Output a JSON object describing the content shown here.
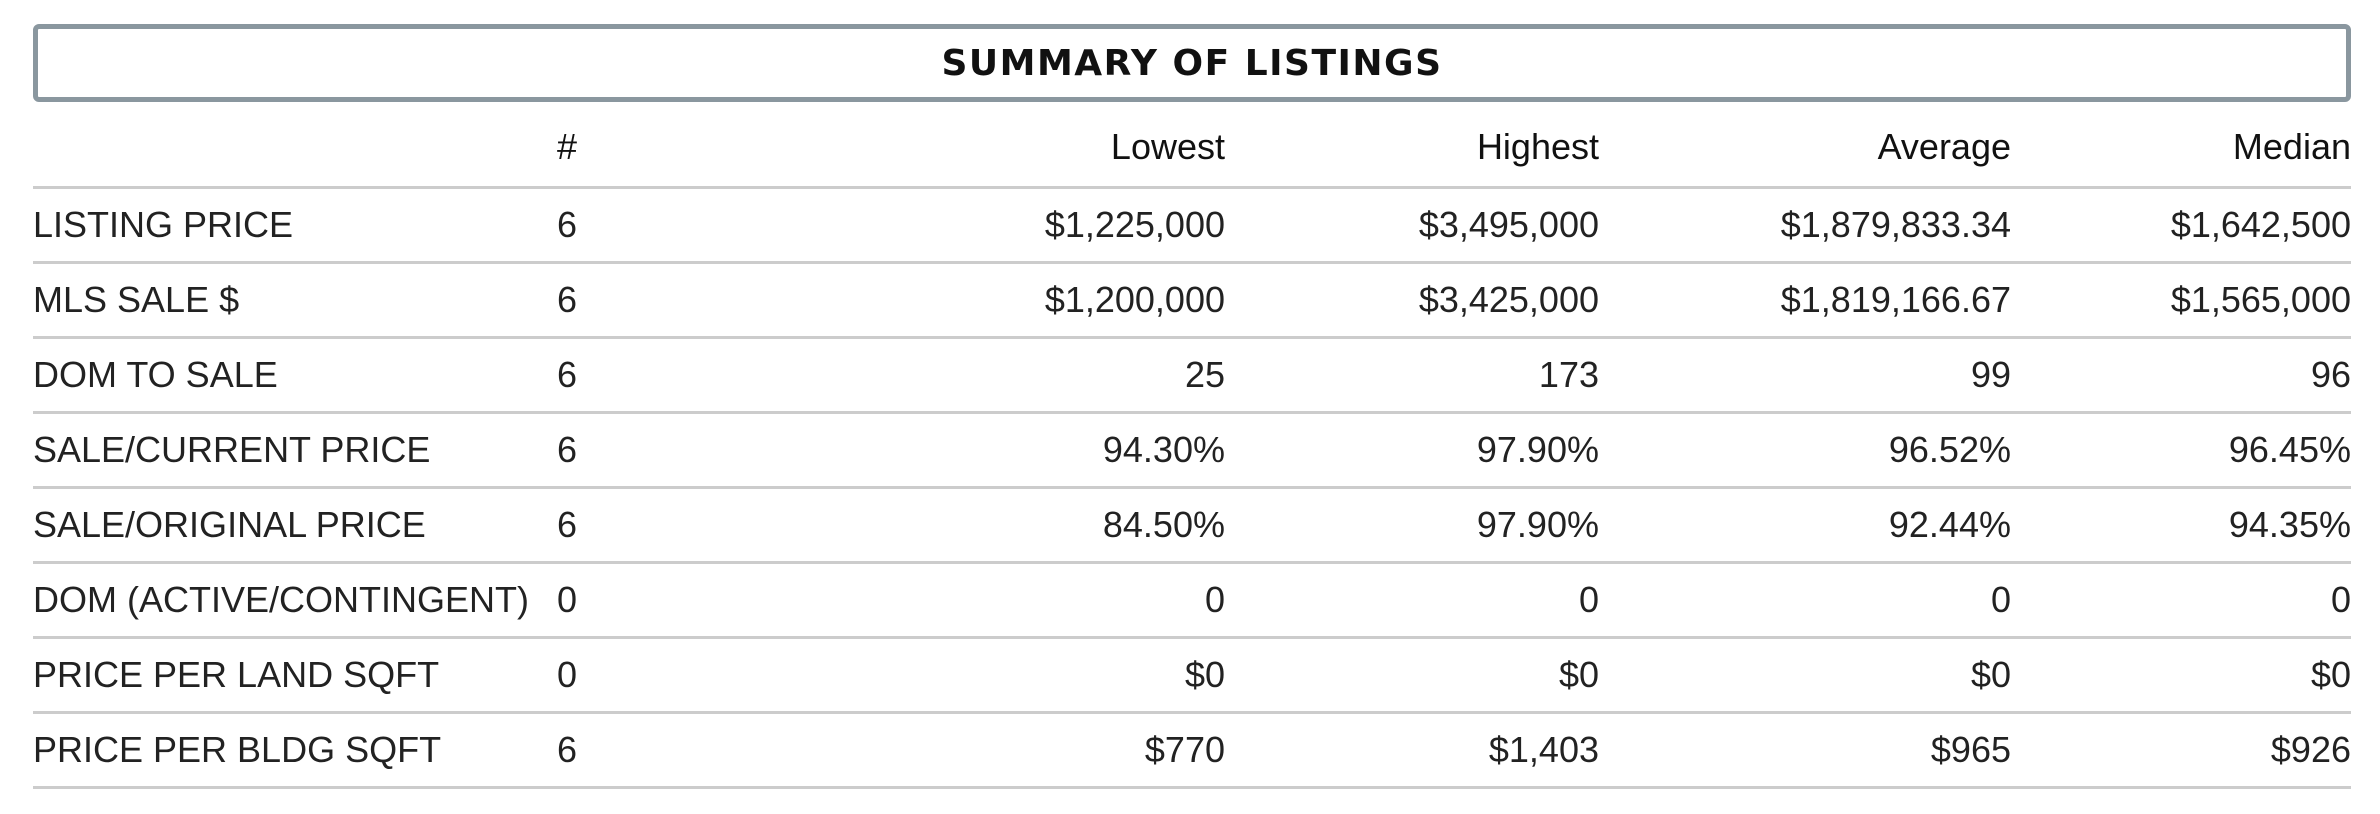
{
  "title": "SUMMARY OF LISTINGS",
  "headers": {
    "label": "",
    "count": "#",
    "lowest": "Lowest",
    "highest": "Highest",
    "average": "Average",
    "median": "Median"
  },
  "rows": [
    {
      "label": "LISTING PRICE",
      "count": "6",
      "lowest": "$1,225,000",
      "highest": "$3,495,000",
      "average": "$1,879,833.34",
      "median": "$1,642,500"
    },
    {
      "label": "MLS SALE $",
      "count": "6",
      "lowest": "$1,200,000",
      "highest": "$3,425,000",
      "average": "$1,819,166.67",
      "median": "$1,565,000"
    },
    {
      "label": "DOM TO SALE",
      "count": "6",
      "lowest": "25",
      "highest": "173",
      "average": "99",
      "median": "96"
    },
    {
      "label": "SALE/CURRENT PRICE",
      "count": "6",
      "lowest": "94.30%",
      "highest": "97.90%",
      "average": "96.52%",
      "median": "96.45%"
    },
    {
      "label": "SALE/ORIGINAL PRICE",
      "count": "6",
      "lowest": "84.50%",
      "highest": "97.90%",
      "average": "92.44%",
      "median": "94.35%"
    },
    {
      "label": "DOM (ACTIVE/CONTINGENT)",
      "count": "0",
      "lowest": "0",
      "highest": "0",
      "average": "0",
      "median": "0"
    },
    {
      "label": "PRICE PER LAND SQFT",
      "count": "0",
      "lowest": "$0",
      "highest": "$0",
      "average": "$0",
      "median": "$0"
    },
    {
      "label": "PRICE PER BLDG SQFT",
      "count": "6",
      "lowest": "$770",
      "highest": "$1,403",
      "average": "$965",
      "median": "$926"
    }
  ],
  "colors": {
    "title_border": "#8a979f",
    "row_divider": "#cccccc",
    "text": "#222222"
  }
}
